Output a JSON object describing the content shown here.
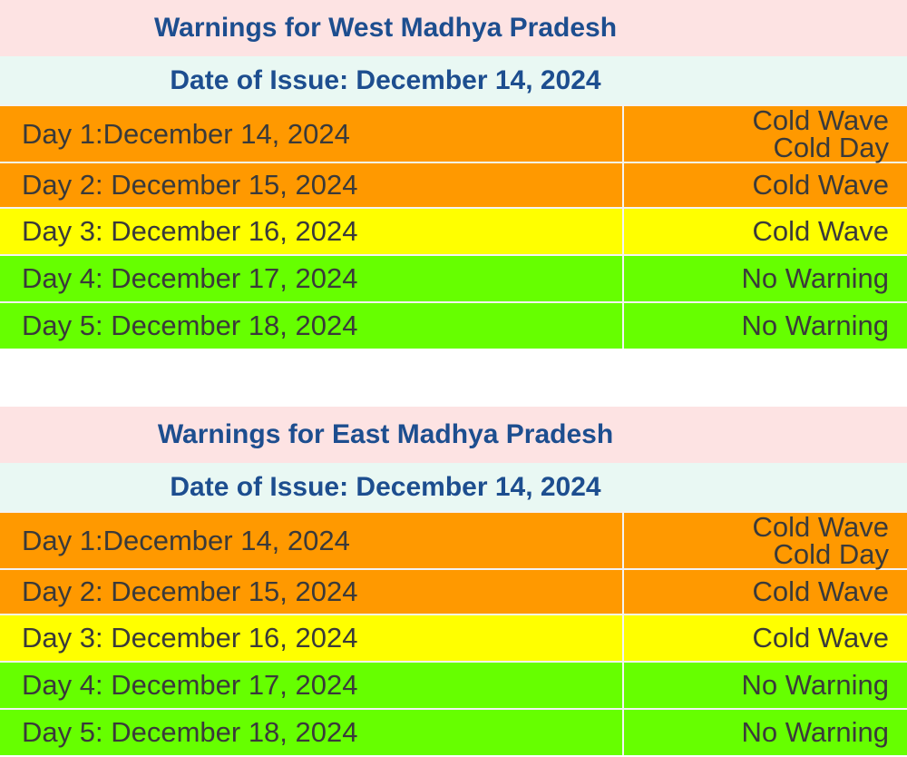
{
  "sections": [
    {
      "title": "Warnings for West Madhya Pradesh",
      "date": "Date of Issue: December 14, 2024",
      "rows": [
        {
          "day": "Day 1:December 14, 2024",
          "warnings": [
            "Cold Wave",
            "Cold Day"
          ]
        },
        {
          "day": "Day 2: December 15, 2024",
          "warnings": [
            "Cold Wave"
          ]
        },
        {
          "day": "Day 3: December 16, 2024",
          "warnings": [
            "Cold Wave"
          ]
        },
        {
          "day": "Day 4: December 17, 2024",
          "warnings": [
            "No Warning"
          ]
        },
        {
          "day": "Day 5: December 18, 2024",
          "warnings": [
            "No Warning"
          ]
        }
      ]
    },
    {
      "title": "Warnings for East Madhya Pradesh",
      "date": "Date of Issue: December 14, 2024",
      "rows": [
        {
          "day": "Day 1:December 14, 2024",
          "warnings": [
            "Cold Wave",
            "Cold Day"
          ]
        },
        {
          "day": "Day 2: December 15, 2024",
          "warnings": [
            "Cold Wave"
          ]
        },
        {
          "day": "Day 3: December 16, 2024",
          "warnings": [
            "Cold Wave"
          ]
        },
        {
          "day": "Day 4: December 17, 2024",
          "warnings": [
            "No Warning"
          ]
        },
        {
          "day": "Day 5: December 18, 2024",
          "warnings": [
            "No Warning"
          ]
        }
      ]
    }
  ]
}
